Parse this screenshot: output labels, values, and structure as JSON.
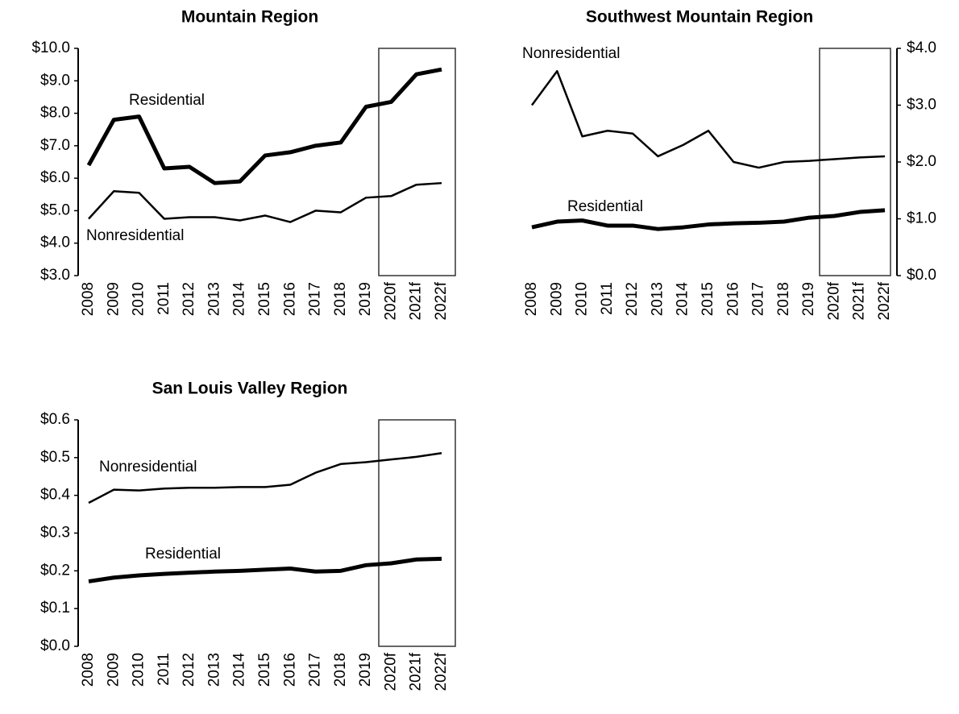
{
  "chart_data": [
    {
      "type": "line",
      "title": "Mountain Region",
      "y_axis_side": "left",
      "categories": [
        "2008",
        "2009",
        "2010",
        "2011",
        "2012",
        "2013",
        "2014",
        "2015",
        "2016",
        "2017",
        "2018",
        "2019",
        "2020f",
        "2021f",
        "2022f"
      ],
      "series": [
        {
          "name": "Residential",
          "color": "#000000",
          "line_width": 5,
          "values": [
            6.4,
            7.8,
            7.9,
            6.3,
            6.35,
            5.85,
            5.9,
            6.7,
            6.8,
            7.0,
            7.1,
            8.2,
            8.35,
            9.2,
            9.35
          ]
        },
        {
          "name": "Nonresidential",
          "color": "#000000",
          "line_width": 2.5,
          "values": [
            4.75,
            5.6,
            5.55,
            4.75,
            4.8,
            4.8,
            4.7,
            4.85,
            4.65,
            5.0,
            4.95,
            5.4,
            5.45,
            5.8,
            5.85
          ]
        }
      ],
      "ylim": [
        3,
        10
      ],
      "yticks": [
        {
          "value": 3,
          "label": "$3.0"
        },
        {
          "value": 4,
          "label": "$4.0"
        },
        {
          "value": 5,
          "label": "$5.0"
        },
        {
          "value": 6,
          "label": "$6.0"
        },
        {
          "value": 7,
          "label": "$7.0"
        },
        {
          "value": 8,
          "label": "$8.0"
        },
        {
          "value": 9,
          "label": "$9.0"
        },
        {
          "value": 10,
          "label": "$10.0"
        }
      ]
    },
    {
      "type": "line",
      "title": "Southwest Mountain Region",
      "y_axis_side": "right",
      "categories": [
        "2008",
        "2009",
        "2010",
        "2011",
        "2012",
        "2013",
        "2014",
        "2015",
        "2016",
        "2017",
        "2018",
        "2019",
        "2020f",
        "2021f",
        "2022f"
      ],
      "series": [
        {
          "name": "Nonresidential",
          "color": "#000000",
          "line_width": 2.5,
          "values": [
            3.0,
            3.6,
            2.45,
            2.55,
            2.5,
            2.1,
            2.3,
            2.55,
            2.0,
            1.9,
            2.0,
            2.02,
            2.05,
            2.08,
            2.1
          ]
        },
        {
          "name": "Residential",
          "color": "#000000",
          "line_width": 5,
          "values": [
            0.85,
            0.95,
            0.97,
            0.88,
            0.88,
            0.82,
            0.85,
            0.9,
            0.92,
            0.93,
            0.95,
            1.02,
            1.05,
            1.12,
            1.15
          ]
        }
      ],
      "ylim": [
        0,
        4
      ],
      "yticks": [
        {
          "value": 0,
          "label": "$0.0"
        },
        {
          "value": 1,
          "label": "$1.0"
        },
        {
          "value": 2,
          "label": "$2.0"
        },
        {
          "value": 3,
          "label": "$3.0"
        },
        {
          "value": 4,
          "label": "$4.0"
        }
      ]
    },
    {
      "type": "line",
      "title": "San Louis Valley Region",
      "y_axis_side": "left",
      "categories": [
        "2008",
        "2009",
        "2010",
        "2011",
        "2012",
        "2013",
        "2014",
        "2015",
        "2016",
        "2017",
        "2018",
        "2019",
        "2020f",
        "2021f",
        "2022f"
      ],
      "series": [
        {
          "name": "Nonresidential",
          "color": "#000000",
          "line_width": 2.5,
          "values": [
            0.38,
            0.415,
            0.413,
            0.418,
            0.42,
            0.42,
            0.422,
            0.422,
            0.428,
            0.46,
            0.483,
            0.488,
            0.495,
            0.502,
            0.512
          ]
        },
        {
          "name": "Residential",
          "color": "#000000",
          "line_width": 5,
          "values": [
            0.172,
            0.182,
            0.188,
            0.192,
            0.195,
            0.198,
            0.2,
            0.203,
            0.206,
            0.198,
            0.2,
            0.215,
            0.22,
            0.23,
            0.232
          ]
        }
      ],
      "ylim": [
        0,
        0.6
      ],
      "yticks": [
        {
          "value": 0,
          "label": "$0.0"
        },
        {
          "value": 0.1,
          "label": "$0.1"
        },
        {
          "value": 0.2,
          "label": "$0.2"
        },
        {
          "value": 0.3,
          "label": "$0.3"
        },
        {
          "value": 0.4,
          "label": "$0.4"
        },
        {
          "value": 0.5,
          "label": "$0.5"
        },
        {
          "value": 0.6,
          "label": "$0.6"
        }
      ]
    }
  ]
}
